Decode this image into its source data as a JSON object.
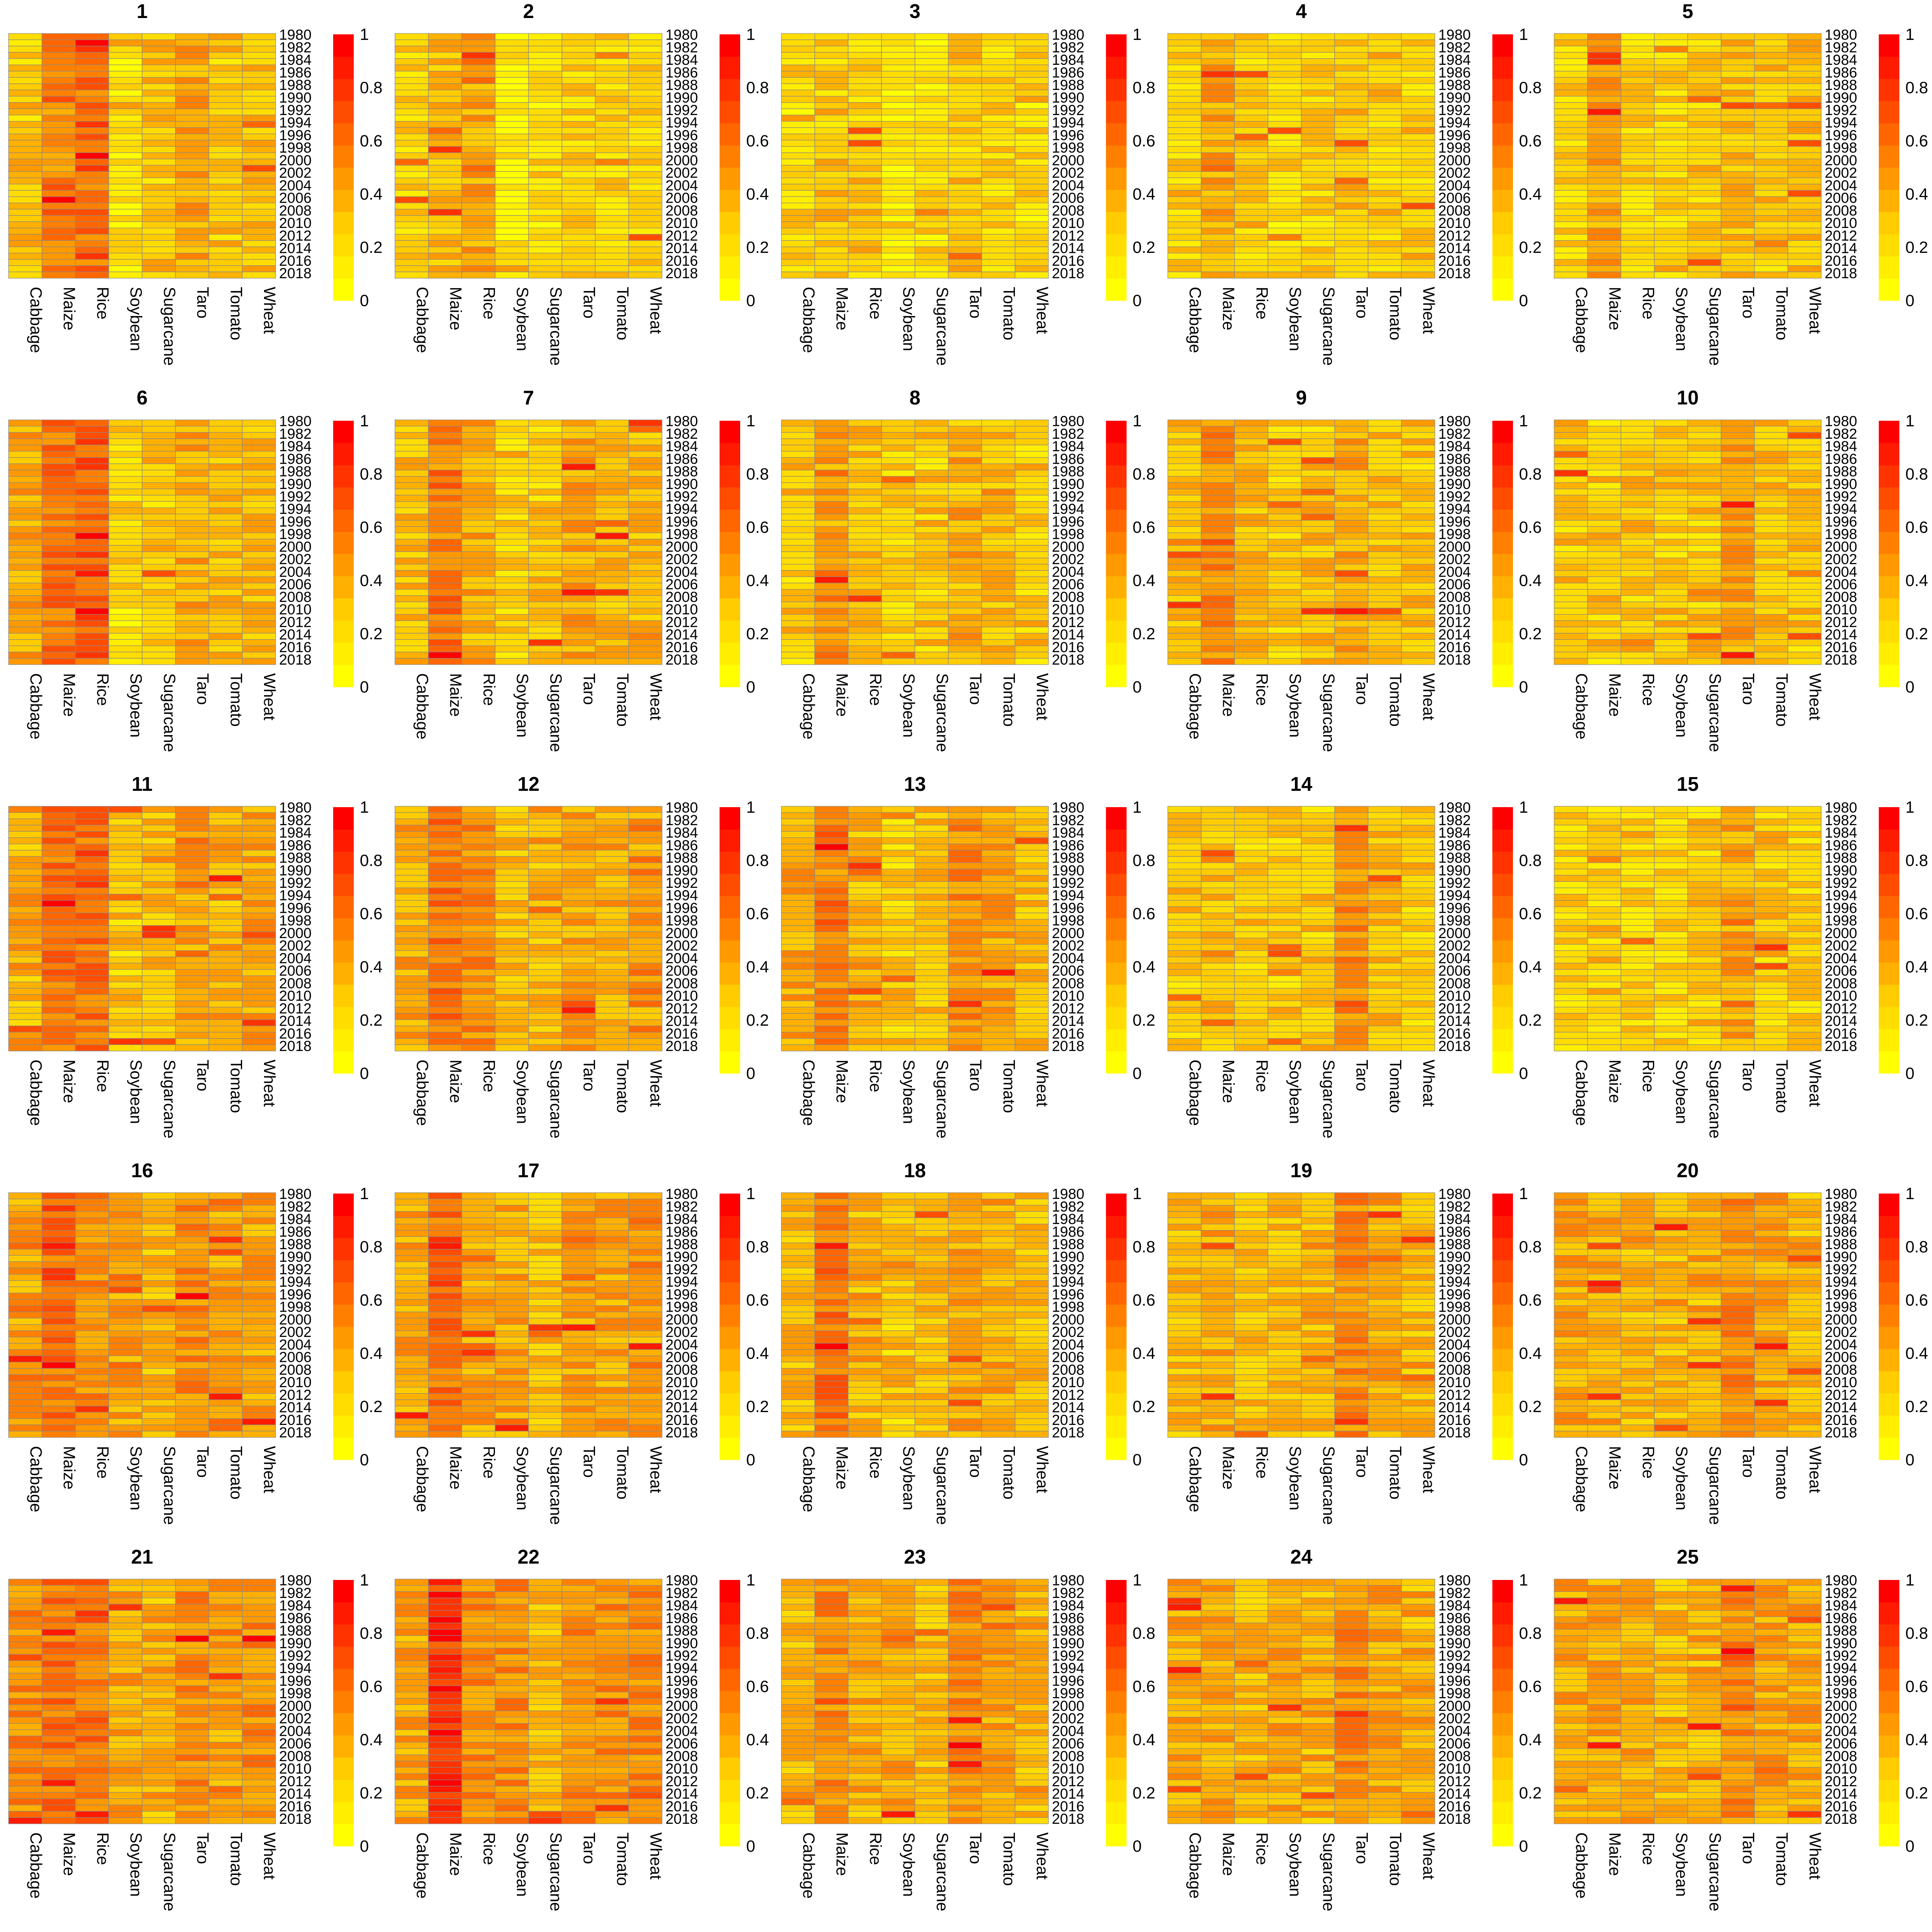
{
  "chart_data": {
    "type": "heatmap",
    "layout": {
      "rows": 5,
      "cols": 5
    },
    "panel_titles": [
      "1",
      "2",
      "3",
      "4",
      "5",
      "6",
      "7",
      "8",
      "9",
      "10",
      "11",
      "12",
      "13",
      "14",
      "15",
      "16",
      "17",
      "18",
      "19",
      "20",
      "21",
      "22",
      "23",
      "24",
      "25"
    ],
    "crops": [
      "Cabbage",
      "Maize",
      "Rice",
      "Soybean",
      "Sugarcane",
      "Taro",
      "Tomato",
      "Wheat"
    ],
    "years_range": [
      1980,
      2018
    ],
    "year_labels": [
      "1980",
      "1982",
      "1984",
      "1986",
      "1988",
      "1990",
      "1992",
      "1994",
      "1996",
      "1998",
      "2000",
      "2002",
      "2004",
      "2006",
      "2008",
      "2010",
      "2012",
      "2014",
      "2016",
      "2018"
    ],
    "colorbar": {
      "min": 0,
      "max": 1,
      "ticks": [
        "0",
        "0.2",
        "0.4",
        "0.6",
        "0.8",
        "1"
      ],
      "colors": [
        "#FFFF00",
        "#FFEE00",
        "#FFDD00",
        "#FFCC00",
        "#FFB000",
        "#FF9900",
        "#FF8000",
        "#FF6600",
        "#FF4D00",
        "#FF3300",
        "#FF1A00",
        "#FF0000"
      ]
    },
    "cell_border_color": "#888888",
    "panel_base_levels": [
      [
        0.3,
        0.55,
        0.62,
        0.18,
        0.3,
        0.42,
        0.3,
        0.32
      ],
      [
        0.25,
        0.35,
        0.45,
        0.12,
        0.22,
        0.28,
        0.25,
        0.25
      ],
      [
        0.22,
        0.3,
        0.28,
        0.15,
        0.2,
        0.3,
        0.24,
        0.22
      ],
      [
        0.25,
        0.4,
        0.28,
        0.22,
        0.25,
        0.3,
        0.28,
        0.28
      ],
      [
        0.25,
        0.42,
        0.25,
        0.24,
        0.28,
        0.32,
        0.3,
        0.33
      ],
      [
        0.4,
        0.6,
        0.65,
        0.22,
        0.28,
        0.4,
        0.32,
        0.35
      ],
      [
        0.32,
        0.55,
        0.38,
        0.28,
        0.3,
        0.4,
        0.36,
        0.36
      ],
      [
        0.28,
        0.45,
        0.32,
        0.28,
        0.3,
        0.38,
        0.34,
        0.3
      ],
      [
        0.32,
        0.5,
        0.35,
        0.26,
        0.3,
        0.4,
        0.34,
        0.3
      ],
      [
        0.3,
        0.3,
        0.3,
        0.28,
        0.3,
        0.42,
        0.32,
        0.3
      ],
      [
        0.38,
        0.6,
        0.62,
        0.3,
        0.36,
        0.45,
        0.38,
        0.42
      ],
      [
        0.4,
        0.6,
        0.5,
        0.35,
        0.38,
        0.42,
        0.4,
        0.45
      ],
      [
        0.4,
        0.55,
        0.38,
        0.28,
        0.32,
        0.48,
        0.42,
        0.36
      ],
      [
        0.28,
        0.32,
        0.28,
        0.28,
        0.3,
        0.48,
        0.32,
        0.3
      ],
      [
        0.25,
        0.28,
        0.25,
        0.25,
        0.28,
        0.4,
        0.3,
        0.26
      ],
      [
        0.45,
        0.62,
        0.5,
        0.45,
        0.35,
        0.5,
        0.45,
        0.45
      ],
      [
        0.42,
        0.62,
        0.45,
        0.4,
        0.32,
        0.45,
        0.42,
        0.45
      ],
      [
        0.35,
        0.58,
        0.38,
        0.3,
        0.36,
        0.42,
        0.4,
        0.36
      ],
      [
        0.36,
        0.4,
        0.3,
        0.32,
        0.36,
        0.5,
        0.4,
        0.34
      ],
      [
        0.4,
        0.4,
        0.36,
        0.36,
        0.38,
        0.52,
        0.42,
        0.38
      ],
      [
        0.5,
        0.6,
        0.58,
        0.4,
        0.38,
        0.5,
        0.45,
        0.5
      ],
      [
        0.42,
        0.78,
        0.5,
        0.48,
        0.35,
        0.5,
        0.48,
        0.52
      ],
      [
        0.38,
        0.5,
        0.38,
        0.4,
        0.32,
        0.5,
        0.45,
        0.36
      ],
      [
        0.4,
        0.42,
        0.35,
        0.42,
        0.36,
        0.5,
        0.45,
        0.38
      ],
      [
        0.42,
        0.42,
        0.4,
        0.36,
        0.38,
        0.52,
        0.46,
        0.4
      ]
    ]
  }
}
